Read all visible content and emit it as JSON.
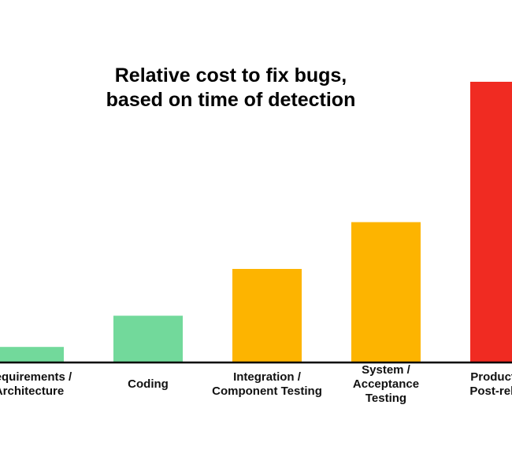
{
  "chart_data": {
    "type": "bar",
    "title": [
      "Relative cost to fix bugs,",
      "based on time of detection"
    ],
    "xlabel": "",
    "ylabel": "",
    "grid": false,
    "legend": "none",
    "categories": [
      [
        "Requirements /",
        "Architecture"
      ],
      [
        "Coding"
      ],
      [
        "Integration /",
        "Component Testing"
      ],
      [
        "System /",
        "Acceptance",
        "Testing"
      ],
      [
        "Production /",
        "Post-release"
      ]
    ],
    "values": [
      1,
      3,
      6,
      9,
      18
    ],
    "ylim": [
      0,
      18
    ],
    "colors": [
      "#72d99b",
      "#72d99b",
      "#fdb400",
      "#fdb400",
      "#f02b22"
    ]
  }
}
